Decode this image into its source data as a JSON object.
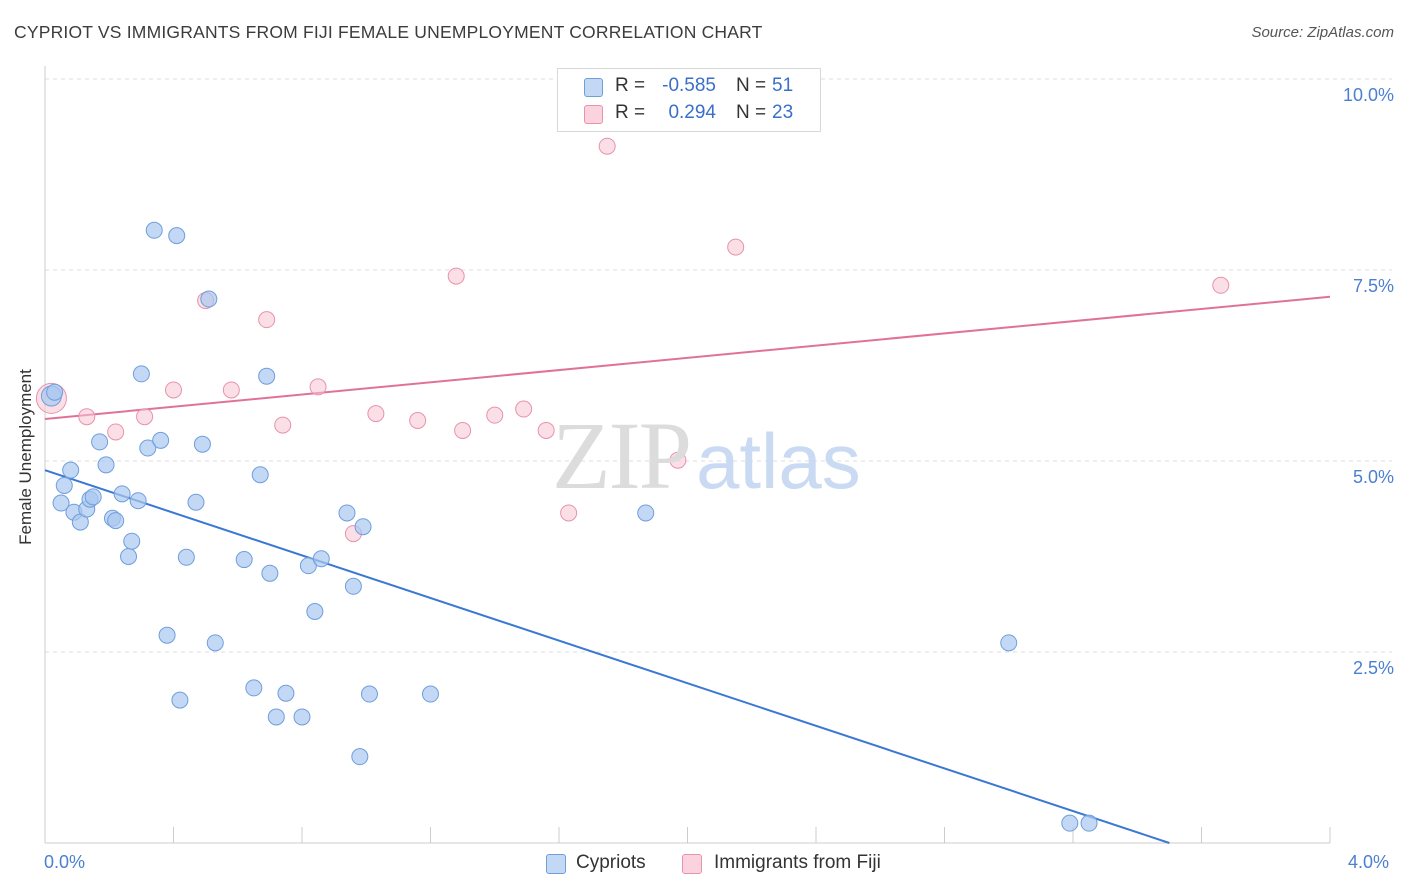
{
  "title": "CYPRIOT VS IMMIGRANTS FROM FIJI FEMALE UNEMPLOYMENT CORRELATION CHART",
  "source": "Source: ZipAtlas.com",
  "watermark": {
    "zip": "ZIP",
    "atlas": "atlas"
  },
  "legend": {
    "rows": [
      {
        "r_label": "R =",
        "r_value": "-0.585",
        "n_label": "N =",
        "n_value": "51"
      },
      {
        "r_label": "R =",
        "r_value": "0.294",
        "n_label": "N =",
        "n_value": "23"
      }
    ]
  },
  "bottom_legend": [
    "Cypriots",
    "Immigrants from Fiji"
  ],
  "colors": {
    "blue_fill": "#a9c8f0",
    "blue_stroke": "#6f9edc",
    "blue_line": "#3a78d4",
    "pink_fill": "#f7c4d3",
    "pink_stroke": "#e892ad",
    "pink_line": "#e0729a",
    "grid": "#dddddd",
    "tick_text": "#4b7fd0"
  },
  "chart_data": {
    "type": "scatter",
    "title": "CYPRIOT VS IMMIGRANTS FROM FIJI FEMALE UNEMPLOYMENT CORRELATION CHART",
    "xlabel": "",
    "ylabel": "Female Unemployment",
    "xlim": [
      0.0,
      4.0
    ],
    "ylim": [
      0.0,
      10.0
    ],
    "x_tick_labels": [
      "0.0%",
      "4.0%"
    ],
    "y_tick_values": [
      2.5,
      5.0,
      7.5,
      10.0
    ],
    "y_tick_labels": [
      "2.5%",
      "5.0%",
      "7.5%",
      "10.0%"
    ],
    "grid": "horizontal dashed",
    "legend": "top-center",
    "series": [
      {
        "name": "Cypriots",
        "r": -0.585,
        "n": 51,
        "trend": [
          [
            0.0,
            4.88
          ],
          [
            3.5,
            0.0
          ]
        ],
        "points": [
          [
            0.02,
            5.85
          ],
          [
            0.08,
            4.88
          ],
          [
            0.06,
            4.68
          ],
          [
            0.05,
            4.45
          ],
          [
            0.09,
            4.33
          ],
          [
            0.11,
            4.2
          ],
          [
            0.13,
            4.37
          ],
          [
            0.14,
            4.5
          ],
          [
            0.15,
            4.53
          ],
          [
            0.17,
            5.25
          ],
          [
            0.19,
            4.95
          ],
          [
            0.21,
            4.25
          ],
          [
            0.22,
            4.22
          ],
          [
            0.24,
            4.57
          ],
          [
            0.26,
            3.75
          ],
          [
            0.27,
            3.95
          ],
          [
            0.29,
            4.48
          ],
          [
            0.3,
            6.14
          ],
          [
            0.32,
            5.17
          ],
          [
            0.34,
            8.02
          ],
          [
            0.36,
            5.27
          ],
          [
            0.38,
            2.72
          ],
          [
            0.41,
            7.95
          ],
          [
            0.42,
            1.87
          ],
          [
            0.44,
            3.74
          ],
          [
            0.47,
            4.46
          ],
          [
            0.49,
            5.22
          ],
          [
            0.51,
            7.12
          ],
          [
            0.53,
            2.62
          ],
          [
            0.62,
            3.71
          ],
          [
            0.65,
            2.03
          ],
          [
            0.67,
            4.82
          ],
          [
            0.69,
            6.11
          ],
          [
            0.7,
            3.53
          ],
          [
            0.72,
            1.65
          ],
          [
            0.75,
            1.96
          ],
          [
            0.8,
            1.65
          ],
          [
            0.82,
            3.63
          ],
          [
            0.84,
            3.03
          ],
          [
            0.86,
            3.72
          ],
          [
            0.94,
            4.32
          ],
          [
            0.96,
            3.36
          ],
          [
            0.98,
            1.13
          ],
          [
            0.99,
            4.14
          ],
          [
            1.01,
            1.95
          ],
          [
            1.2,
            1.95
          ],
          [
            1.87,
            4.32
          ],
          [
            3.0,
            2.62
          ],
          [
            3.19,
            0.26
          ],
          [
            3.25,
            0.26
          ],
          [
            0.03,
            5.9
          ]
        ]
      },
      {
        "name": "Immigrants from Fiji",
        "r": 0.294,
        "n": 23,
        "trend": [
          [
            0.0,
            5.55
          ],
          [
            4.0,
            7.15
          ]
        ],
        "points": [
          [
            0.02,
            5.82
          ],
          [
            0.13,
            5.58
          ],
          [
            0.22,
            5.38
          ],
          [
            0.31,
            5.58
          ],
          [
            0.4,
            5.93
          ],
          [
            0.5,
            7.1
          ],
          [
            0.58,
            5.93
          ],
          [
            0.69,
            6.85
          ],
          [
            0.74,
            5.47
          ],
          [
            0.85,
            5.97
          ],
          [
            1.03,
            5.62
          ],
          [
            1.16,
            5.53
          ],
          [
            1.28,
            7.42
          ],
          [
            1.3,
            5.4
          ],
          [
            1.4,
            5.6
          ],
          [
            1.49,
            5.68
          ],
          [
            1.56,
            5.4
          ],
          [
            1.63,
            4.32
          ],
          [
            1.75,
            9.12
          ],
          [
            1.97,
            5.01
          ],
          [
            2.15,
            7.8
          ],
          [
            3.66,
            7.3
          ],
          [
            0.96,
            4.05
          ]
        ]
      }
    ]
  }
}
